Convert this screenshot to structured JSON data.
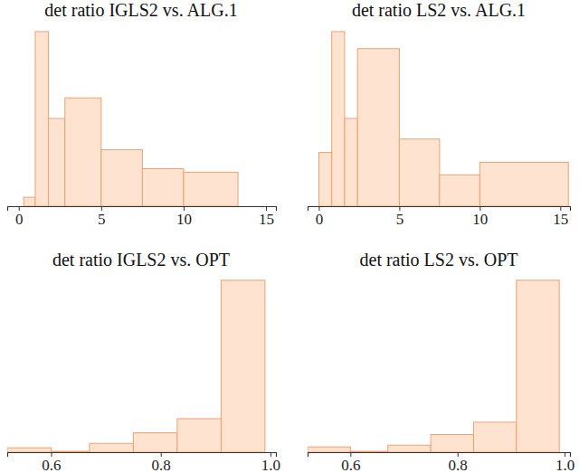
{
  "chart_data": [
    {
      "type": "histogram",
      "title": "det ratio IGLS2 vs. ALG.1",
      "bins": [
        0.3,
        1,
        1.8,
        2.8,
        5,
        7.5,
        10,
        13.3
      ],
      "counts": [
        10,
        195,
        98,
        121,
        63,
        42,
        38
      ],
      "color": "#fde3d0",
      "xlim": [
        -0.7,
        15.6
      ],
      "ylim": [
        0,
        200
      ],
      "xticks": [
        0,
        5,
        10,
        15
      ],
      "tick_labels": "x"
    },
    {
      "type": "histogram",
      "title": "det ratio LS2 vs. ALG.1",
      "bins": [
        0,
        0.8,
        1.6,
        2.4,
        5,
        7.5,
        10,
        15.5
      ],
      "counts": [
        60,
        195,
        98,
        176,
        75,
        35,
        49
      ],
      "color": "#fde3d0",
      "xlim": [
        -0.7,
        15.6
      ],
      "ylim": [
        0,
        200
      ],
      "xticks": [
        0,
        5,
        10,
        15
      ],
      "tick_labels": "x"
    },
    {
      "type": "histogram",
      "title": "det ratio IGLS2 vs. OPT",
      "bins": [
        0.52,
        0.6,
        0.67,
        0.75,
        0.83,
        0.91,
        0.99
      ],
      "counts": [
        5,
        1,
        10,
        22,
        38,
        195
      ],
      "color": "#fde3d0",
      "xlim": [
        0.52,
        1.01
      ],
      "ylim": [
        0,
        200
      ],
      "xticks": [
        0.6,
        0.8,
        {
          "value": 1,
          "label": "1.0"
        }
      ],
      "tick_labels": "x"
    },
    {
      "type": "histogram",
      "title": "det ratio LS2 vs. OPT",
      "bins": [
        0.52,
        0.6,
        0.67,
        0.75,
        0.83,
        0.91,
        0.99
      ],
      "counts": [
        6,
        1,
        8,
        20,
        34,
        195
      ],
      "color": "#fde3d0",
      "xlim": [
        0.52,
        1.01
      ],
      "ylim": [
        0,
        200
      ],
      "xticks": [
        0.6,
        0.8,
        {
          "value": 1,
          "label": "1.0"
        }
      ],
      "tick_labels": "x"
    }
  ]
}
